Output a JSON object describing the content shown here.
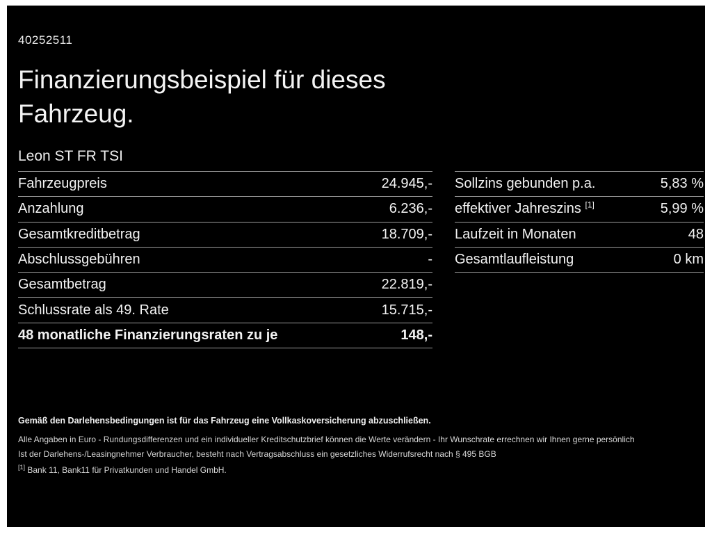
{
  "colors": {
    "background": "#000000",
    "frame": "#ffffff",
    "text": "#f2f2f2",
    "divider": "#9c9c9c"
  },
  "header": {
    "vehicle_id": "40252511",
    "title_line1": "Finanzierungsbeispiel für dieses",
    "title_line2": "Fahrzeug.",
    "subtitle": "Leon ST FR TSI"
  },
  "left_table": {
    "rows": [
      {
        "label": "Fahrzeugpreis",
        "value": "24.945,-"
      },
      {
        "label": "Anzahlung",
        "value": "6.236,-"
      },
      {
        "label": "Gesamtkreditbetrag",
        "value": "18.709,-"
      },
      {
        "label": "Abschlussgebühren",
        "value": "-"
      },
      {
        "label": "Gesamtbetrag",
        "value": "22.819,-"
      },
      {
        "label": "Schlussrate als 49. Rate",
        "value": "15.715,-"
      },
      {
        "label": "48 monatliche Finanzierungsraten zu je",
        "value": "148,-"
      }
    ]
  },
  "right_table": {
    "rows": [
      {
        "label": "Sollzins gebunden p.a.",
        "sup": "",
        "value": "5,83 %"
      },
      {
        "label": "effektiver Jahreszins",
        "sup": "[1]",
        "value": "5,99 %"
      },
      {
        "label": "Laufzeit in Monaten",
        "sup": "",
        "value": "48"
      },
      {
        "label": "Gesamtlaufleistung",
        "sup": "",
        "value": "0 km"
      }
    ]
  },
  "footer": {
    "line1": "Gemäß den Darlehensbedingungen ist für das Fahrzeug eine Vollkaskoversicherung abzuschließen.",
    "line2": "Alle Angaben in Euro - Rundungsdifferenzen und ein individueller Kreditschutzbrief können die Werte verändern - Ihr Wunschrate errechnen wir Ihnen gerne persönlich",
    "line3": "Ist der Darlehens-/Leasingnehmer Verbraucher, besteht nach Vertragsabschluss ein gesetzliches Widerrufsrecht nach § 495 BGB",
    "footnote_marker": "[1]",
    "footnote_text": "Bank 11, Bank11 für Privatkunden und Handel GmbH."
  }
}
